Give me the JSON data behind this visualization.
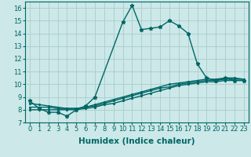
{
  "xlabel": "Humidex (Indice chaleur)",
  "xlim": [
    -0.5,
    23.5
  ],
  "ylim": [
    7,
    16.5
  ],
  "yticks": [
    7,
    8,
    9,
    10,
    11,
    12,
    13,
    14,
    15,
    16
  ],
  "xticks": [
    0,
    1,
    2,
    3,
    4,
    5,
    6,
    7,
    8,
    9,
    10,
    11,
    12,
    13,
    14,
    15,
    16,
    17,
    18,
    19,
    20,
    21,
    22,
    23
  ],
  "background_color": "#cce8e8",
  "grid_color": "#aacccc",
  "line_color": "#006666",
  "line1_x": [
    0,
    1,
    2,
    3,
    4,
    5,
    6,
    7,
    10,
    11,
    12,
    13,
    14,
    15,
    16,
    17,
    18,
    19,
    20,
    21,
    22,
    23
  ],
  "line1_y": [
    8.7,
    8.1,
    7.8,
    7.8,
    7.5,
    8.0,
    8.3,
    9.0,
    14.9,
    16.2,
    14.3,
    14.4,
    14.5,
    15.0,
    14.6,
    14.0,
    11.6,
    10.5,
    10.3,
    10.5,
    10.3,
    10.3
  ],
  "line2_x": [
    0,
    1,
    2,
    3,
    4,
    5,
    6,
    7,
    8,
    9,
    10,
    11,
    12,
    13,
    14,
    15,
    16,
    17,
    18,
    19,
    20,
    21,
    22,
    23
  ],
  "line2_y": [
    8.0,
    8.0,
    8.0,
    8.0,
    8.0,
    8.0,
    8.1,
    8.2,
    8.4,
    8.5,
    8.7,
    8.9,
    9.1,
    9.3,
    9.5,
    9.7,
    9.9,
    10.0,
    10.1,
    10.2,
    10.2,
    10.3,
    10.3,
    10.3
  ],
  "line3_x": [
    0,
    1,
    2,
    3,
    4,
    5,
    6,
    7,
    8,
    9,
    10,
    11,
    12,
    13,
    14,
    15,
    16,
    17,
    18,
    19,
    20,
    21,
    22,
    23
  ],
  "line3_y": [
    8.2,
    8.2,
    8.2,
    8.1,
    8.1,
    8.1,
    8.2,
    8.3,
    8.5,
    8.7,
    8.9,
    9.1,
    9.3,
    9.5,
    9.7,
    9.8,
    10.0,
    10.1,
    10.2,
    10.3,
    10.3,
    10.4,
    10.4,
    10.4
  ],
  "line4_x": [
    0,
    1,
    2,
    3,
    4,
    5,
    6,
    7,
    8,
    9,
    10,
    11,
    12,
    13,
    14,
    15,
    16,
    17,
    18,
    19,
    20,
    21,
    22,
    23
  ],
  "line4_y": [
    8.5,
    8.4,
    8.3,
    8.2,
    8.1,
    8.1,
    8.2,
    8.4,
    8.6,
    8.8,
    9.0,
    9.2,
    9.4,
    9.6,
    9.8,
    10.0,
    10.1,
    10.2,
    10.3,
    10.4,
    10.4,
    10.5,
    10.5,
    10.4
  ],
  "marker_size": 2.5,
  "line_width": 1.0,
  "tick_fontsize": 6,
  "xlabel_fontsize": 7.5
}
